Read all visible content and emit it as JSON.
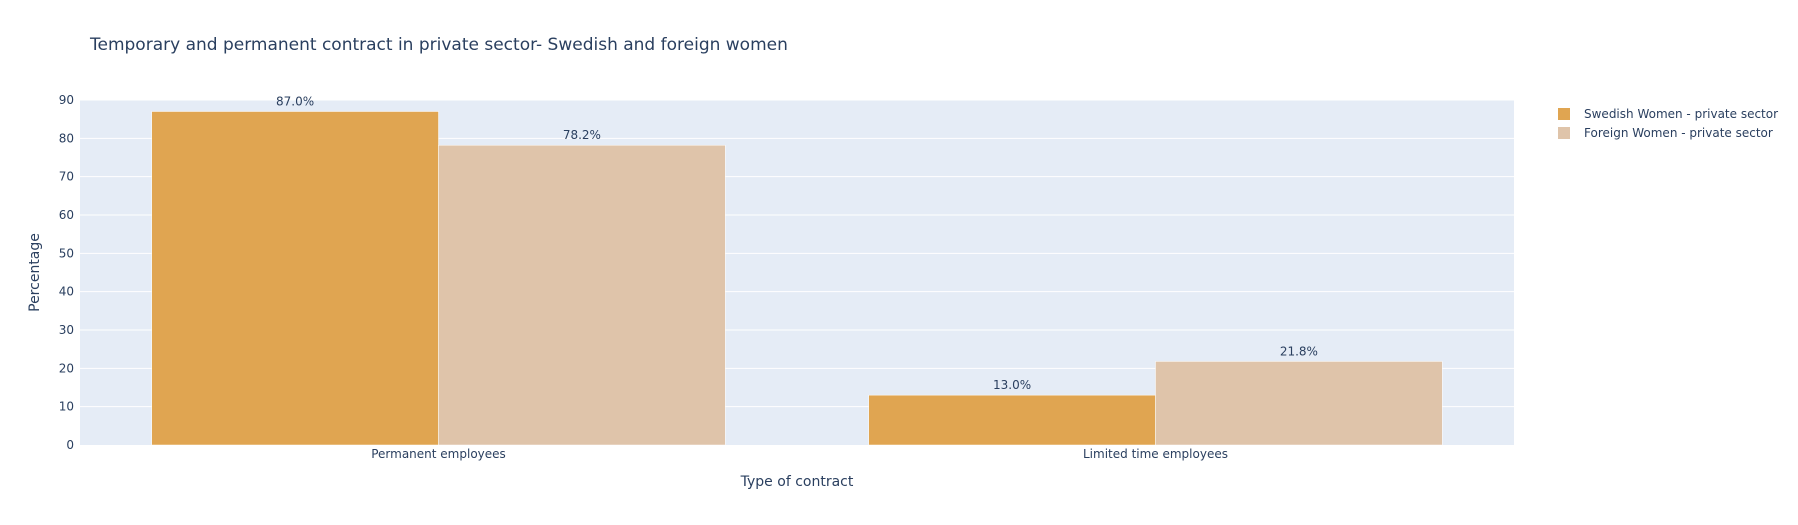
{
  "chart_data": {
    "type": "bar",
    "title": "Temporary and permanent contract in private sector- Swedish  and foreign women",
    "xlabel": "Type of contract",
    "ylabel": "Percentage",
    "categories": [
      "Permanent employees",
      "Limited time employees"
    ],
    "series": [
      {
        "name": "Swedish Women - private sector",
        "values": [
          87.0,
          13.0
        ],
        "labels": [
          "87.0%",
          "13.0%"
        ],
        "color": "#e0a551"
      },
      {
        "name": "Foreign Women - private sector",
        "values": [
          78.2,
          21.8
        ],
        "labels": [
          "78.2%",
          "21.8%"
        ],
        "color": "#dfc4aa"
      }
    ],
    "ylim": [
      0,
      90
    ],
    "yticks": [
      0,
      10,
      20,
      30,
      40,
      50,
      60,
      70,
      80,
      90
    ],
    "grid": true,
    "legend_position": "top-right",
    "plot_background": "#e5ecf6"
  }
}
